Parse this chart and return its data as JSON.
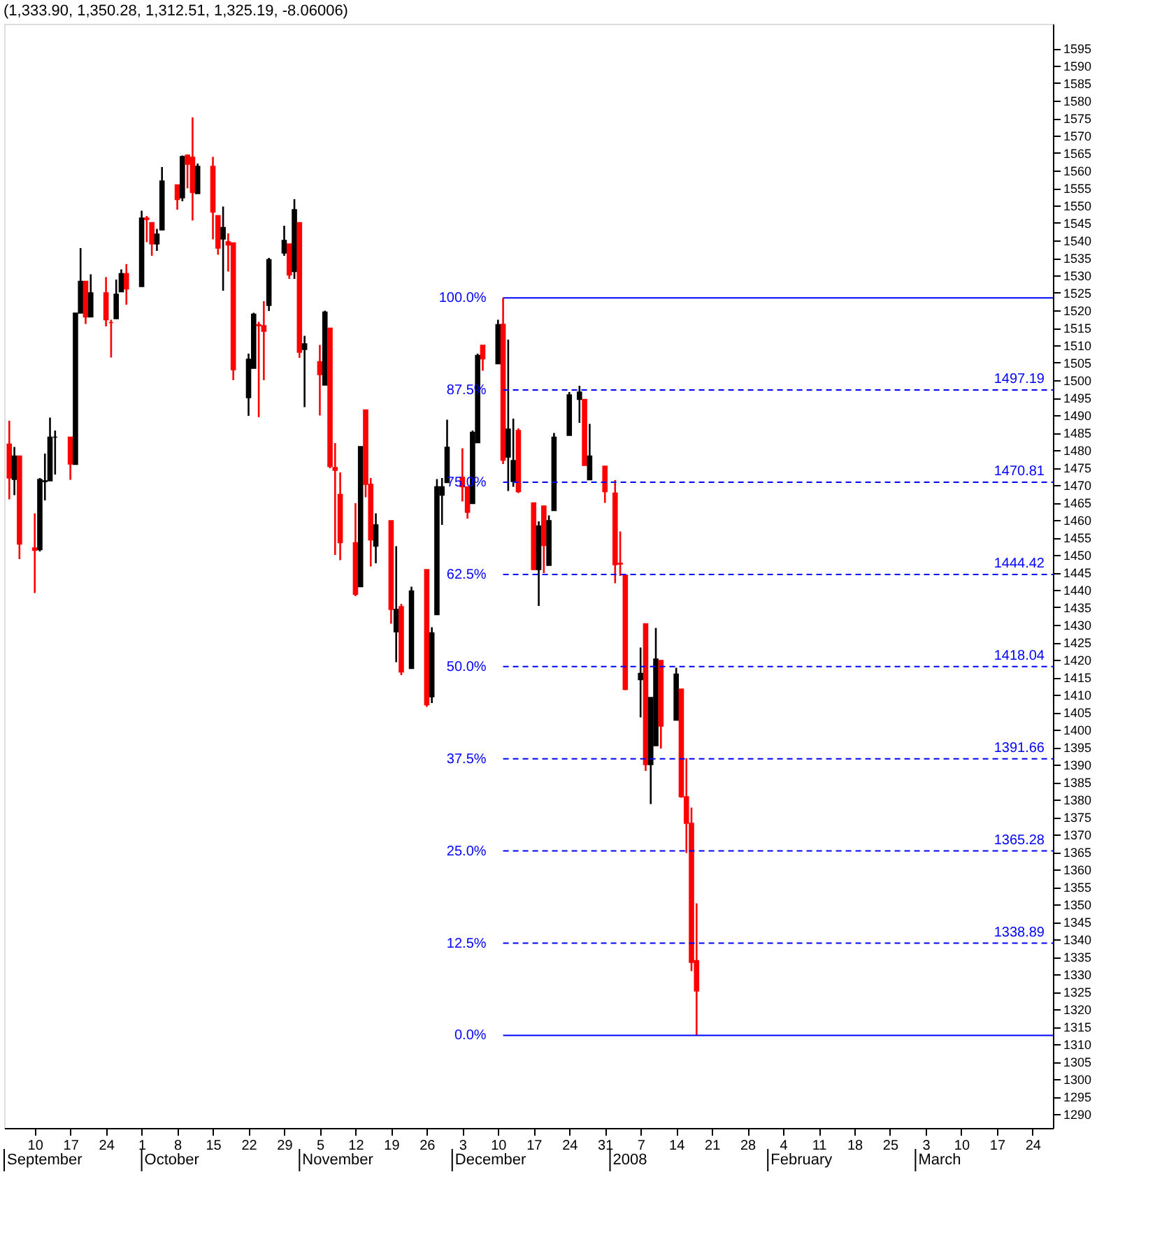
{
  "chart_data": {
    "type": "candlestick",
    "title": "(1,333.90, 1,350.28, 1,312.51, 1,325.19, -8.06006)",
    "x": [
      "2007-09-05",
      "2007-09-06",
      "2007-09-07",
      "2007-09-10",
      "2007-09-11",
      "2007-09-12",
      "2007-09-13",
      "2007-09-14",
      "2007-09-17",
      "2007-09-18",
      "2007-09-19",
      "2007-09-20",
      "2007-09-21",
      "2007-09-24",
      "2007-09-25",
      "2007-09-26",
      "2007-09-27",
      "2007-09-28",
      "2007-10-01",
      "2007-10-02",
      "2007-10-03",
      "2007-10-04",
      "2007-10-05",
      "2007-10-08",
      "2007-10-09",
      "2007-10-10",
      "2007-10-11",
      "2007-10-12",
      "2007-10-15",
      "2007-10-16",
      "2007-10-17",
      "2007-10-18",
      "2007-10-19",
      "2007-10-22",
      "2007-10-23",
      "2007-10-24",
      "2007-10-25",
      "2007-10-26",
      "2007-10-29",
      "2007-10-30",
      "2007-10-31",
      "2007-11-01",
      "2007-11-02",
      "2007-11-05",
      "2007-11-06",
      "2007-11-07",
      "2007-11-08",
      "2007-11-09",
      "2007-11-12",
      "2007-11-13",
      "2007-11-14",
      "2007-11-15",
      "2007-11-16",
      "2007-11-19",
      "2007-11-20",
      "2007-11-21",
      "2007-11-23",
      "2007-11-26",
      "2007-11-27",
      "2007-11-28",
      "2007-11-29",
      "2007-11-30",
      "2007-12-03",
      "2007-12-04",
      "2007-12-05",
      "2007-12-06",
      "2007-12-07",
      "2007-12-10",
      "2007-12-11",
      "2007-12-12",
      "2007-12-13",
      "2007-12-14",
      "2007-12-17",
      "2007-12-18",
      "2007-12-19",
      "2007-12-20",
      "2007-12-21",
      "2007-12-24",
      "2007-12-26",
      "2007-12-27",
      "2007-12-28",
      "2007-12-31",
      "2008-01-02",
      "2008-01-03",
      "2008-01-04",
      "2008-01-07",
      "2008-01-08",
      "2008-01-09",
      "2008-01-10",
      "2008-01-11",
      "2008-01-14",
      "2008-01-15",
      "2008-01-16",
      "2008-01-17",
      "2008-01-18"
    ],
    "ohlc": [
      [
        1481.7,
        1488.4,
        1465.9,
        1472.0
      ],
      [
        1471.6,
        1480.9,
        1467.1,
        1478.3
      ],
      [
        1478.3,
        1478.3,
        1448.8,
        1453.1
      ],
      [
        1452.0,
        1461.9,
        1439.1,
        1451.3
      ],
      [
        1451.5,
        1472.0,
        1451.0,
        1471.6
      ],
      [
        1471.0,
        1479.0,
        1465.6,
        1471.2
      ],
      [
        1471.2,
        1489.3,
        1471.2,
        1483.7
      ],
      [
        1483.7,
        1485.6,
        1473.0,
        1483.7
      ],
      [
        1483.7,
        1483.7,
        1471.5,
        1476.0
      ],
      [
        1475.9,
        1519.2,
        1475.9,
        1519.2
      ],
      [
        1519.2,
        1537.8,
        1519.2,
        1528.3
      ],
      [
        1528.3,
        1528.3,
        1516.1,
        1518.1
      ],
      [
        1518.1,
        1530.3,
        1518.1,
        1525.0
      ],
      [
        1525.0,
        1529.5,
        1515.4,
        1517.3
      ],
      [
        1516.5,
        1517.3,
        1506.5,
        1516.5
      ],
      [
        1517.6,
        1528.8,
        1517.6,
        1524.6
      ],
      [
        1525.3,
        1531.7,
        1525.3,
        1530.5
      ],
      [
        1530.5,
        1533.2,
        1521.6,
        1526.1
      ],
      [
        1526.8,
        1548.5,
        1526.8,
        1546.4
      ],
      [
        1546.4,
        1547.0,
        1539.5,
        1546.0
      ],
      [
        1545.1,
        1545.1,
        1535.6,
        1539.0
      ],
      [
        1539.0,
        1543.3,
        1537.0,
        1541.8
      ],
      [
        1543.0,
        1561.0,
        1543.0,
        1557.0
      ],
      [
        1555.9,
        1555.9,
        1548.8,
        1551.7
      ],
      [
        1552.2,
        1564.3,
        1551.2,
        1564.0
      ],
      [
        1564.4,
        1564.6,
        1554.9,
        1561.8
      ],
      [
        1563.8,
        1575.2,
        1545.7,
        1553.7
      ],
      [
        1553.4,
        1562.0,
        1553.4,
        1561.2
      ],
      [
        1561.2,
        1563.9,
        1540.3,
        1548.1
      ],
      [
        1547.1,
        1547.1,
        1535.9,
        1537.8
      ],
      [
        1540.4,
        1549.7,
        1525.6,
        1543.7
      ],
      [
        1538.7,
        1542.0,
        1531.1,
        1539.6
      ],
      [
        1539.3,
        1539.3,
        1500.0,
        1503.0
      ],
      [
        1495.0,
        1507.6,
        1489.8,
        1506.0
      ],
      [
        1503.4,
        1519.3,
        1503.4,
        1518.9
      ],
      [
        1515.9,
        1516.7,
        1489.4,
        1515.6
      ],
      [
        1515.6,
        1522.6,
        1500.0,
        1514.0
      ],
      [
        1521.4,
        1535.0,
        1519.8,
        1534.5
      ],
      [
        1536.4,
        1544.2,
        1535.6,
        1540.0
      ],
      [
        1539.0,
        1539.0,
        1529.0,
        1530.1
      ],
      [
        1531.1,
        1551.8,
        1529.0,
        1548.8
      ],
      [
        1545.1,
        1545.1,
        1506.4,
        1508.0
      ],
      [
        1508.8,
        1512.7,
        1492.3,
        1510.4
      ],
      [
        1505.3,
        1510.1,
        1489.9,
        1501.6
      ],
      [
        1498.6,
        1519.9,
        1498.6,
        1519.5
      ],
      [
        1514.9,
        1514.9,
        1474.8,
        1475.3
      ],
      [
        1475.0,
        1482.0,
        1450.0,
        1474.2
      ],
      [
        1467.3,
        1473.6,
        1448.5,
        1453.5
      ],
      [
        1453.5,
        1464.8,
        1438.2,
        1438.7
      ],
      [
        1440.9,
        1481.0,
        1440.9,
        1481.0
      ],
      [
        1491.5,
        1491.5,
        1466.5,
        1470.2
      ],
      [
        1470.2,
        1472.0,
        1446.7,
        1454.3
      ],
      [
        1452.5,
        1461.9,
        1447.6,
        1458.6
      ],
      [
        1459.8,
        1459.8,
        1430.3,
        1434.4
      ],
      [
        1428.0,
        1452.5,
        1419.3,
        1434.4
      ],
      [
        1435.2,
        1436.0,
        1415.6,
        1416.5
      ],
      [
        1417.5,
        1440.9,
        1417.5,
        1439.7
      ],
      [
        1445.8,
        1445.8,
        1406.5,
        1407.1
      ],
      [
        1409.4,
        1429.3,
        1407.6,
        1427.7
      ],
      [
        1432.9,
        1471.7,
        1432.9,
        1469.5
      ],
      [
        1467.1,
        1472.0,
        1458.6,
        1469.5
      ],
      [
        1470.7,
        1488.7,
        1470.7,
        1480.8
      ],
      [
        1472.2,
        1480.5,
        1465.3,
        1469.5
      ],
      [
        1469.5,
        1469.5,
        1460.4,
        1462.2
      ],
      [
        1464.7,
        1485.6,
        1464.7,
        1485.1
      ],
      [
        1482.1,
        1507.6,
        1482.1,
        1507.1
      ],
      [
        1510.0,
        1510.0,
        1502.7,
        1506.1
      ],
      [
        1504.7,
        1517.3,
        1504.7,
        1515.9
      ],
      [
        1516.0,
        1523.57,
        1476.0,
        1477.1
      ],
      [
        1478.0,
        1511.6,
        1468.3,
        1486.0
      ],
      [
        1471.0,
        1489.0,
        1469.5,
        1477.0
      ],
      [
        1485.6,
        1486.2,
        1467.7,
        1468.1
      ],
      [
        1464.9,
        1464.9,
        1445.8,
        1445.8
      ],
      [
        1445.8,
        1459.6,
        1435.4,
        1458.3
      ],
      [
        1464.0,
        1464.0,
        1444.8,
        1452.7
      ],
      [
        1447.0,
        1461.3,
        1447.0,
        1459.8
      ],
      [
        1462.7,
        1484.9,
        1462.7,
        1483.7
      ],
      [
        1484.2,
        1496.6,
        1484.2,
        1495.8
      ],
      [
        1494.5,
        1498.4,
        1487.8,
        1496.6
      ],
      [
        1494.5,
        1494.5,
        1475.6,
        1475.6
      ],
      [
        1471.5,
        1487.5,
        1471.5,
        1478.3
      ],
      [
        1475.4,
        1475.4,
        1464.9,
        1468.1
      ],
      [
        1467.7,
        1471.4,
        1441.9,
        1447.2
      ],
      [
        1447.6,
        1456.7,
        1444.0,
        1447.4
      ],
      [
        1444.2,
        1444.2,
        1411.3,
        1411.5
      ],
      [
        1414.3,
        1423.5,
        1403.5,
        1416.1
      ],
      [
        1430.3,
        1430.3,
        1388.2,
        1390.0
      ],
      [
        1390.0,
        1409.2,
        1378.7,
        1409.2
      ],
      [
        1395.4,
        1429.1,
        1395.4,
        1420.2
      ],
      [
        1419.8,
        1419.8,
        1394.6,
        1401.0
      ],
      [
        1402.7,
        1417.7,
        1402.7,
        1415.9
      ],
      [
        1411.6,
        1411.6,
        1380.5,
        1380.8
      ],
      [
        1380.8,
        1391.8,
        1364.7,
        1373.2
      ],
      [
        1373.2,
        1377.7,
        1330.9,
        1333.4
      ],
      [
        1333.9,
        1350.28,
        1312.51,
        1325.19
      ]
    ],
    "colors": [
      "#ff0000",
      "#000000",
      "#ff0000",
      "#ff0000",
      "#000000",
      "#000000",
      "#000000",
      "#000000",
      "#ff0000",
      "#000000",
      "#000000",
      "#ff0000",
      "#000000",
      "#ff0000",
      "#ff0000",
      "#000000",
      "#000000",
      "#ff0000",
      "#000000",
      "#ff0000",
      "#ff0000",
      "#000000",
      "#000000",
      "#ff0000",
      "#000000",
      "#ff0000",
      "#ff0000",
      "#000000",
      "#ff0000",
      "#ff0000",
      "#000000",
      "#ff0000",
      "#ff0000",
      "#000000",
      "#000000",
      "#ff0000",
      "#ff0000",
      "#000000",
      "#000000",
      "#ff0000",
      "#000000",
      "#ff0000",
      "#000000",
      "#ff0000",
      "#000000",
      "#ff0000",
      "#ff0000",
      "#ff0000",
      "#ff0000",
      "#000000",
      "#ff0000",
      "#ff0000",
      "#000000",
      "#ff0000",
      "#000000",
      "#ff0000",
      "#000000",
      "#ff0000",
      "#000000",
      "#000000",
      "#000000",
      "#000000",
      "#ff0000",
      "#ff0000",
      "#000000",
      "#000000",
      "#ff0000",
      "#000000",
      "#ff0000",
      "#000000",
      "#000000",
      "#ff0000",
      "#ff0000",
      "#000000",
      "#ff0000",
      "#000000",
      "#000000",
      "#000000",
      "#000000",
      "#ff0000",
      "#000000",
      "#ff0000",
      "#ff0000",
      "#ff0000",
      "#ff0000",
      "#000000",
      "#ff0000",
      "#000000",
      "#000000",
      "#ff0000",
      "#000000",
      "#ff0000",
      "#ff0000",
      "#ff0000",
      "#ff0000"
    ],
    "xlim": [
      "2007-09-04",
      "2008-03-28"
    ],
    "xticks": [
      {
        "value": "2007-09-10",
        "label": "10"
      },
      {
        "value": "2007-09-17",
        "label": "17"
      },
      {
        "value": "2007-09-24",
        "label": "24"
      },
      {
        "value": "2007-10-01",
        "label": "1"
      },
      {
        "value": "2007-10-08",
        "label": "8"
      },
      {
        "value": "2007-10-15",
        "label": "15"
      },
      {
        "value": "2007-10-22",
        "label": "22"
      },
      {
        "value": "2007-10-29",
        "label": "29"
      },
      {
        "value": "2007-11-05",
        "label": "5"
      },
      {
        "value": "2007-11-12",
        "label": "12"
      },
      {
        "value": "2007-11-19",
        "label": "19"
      },
      {
        "value": "2007-11-26",
        "label": "26"
      },
      {
        "value": "2007-12-03",
        "label": "3"
      },
      {
        "value": "2007-12-10",
        "label": "10"
      },
      {
        "value": "2007-12-17",
        "label": "17"
      },
      {
        "value": "2007-12-24",
        "label": "24"
      },
      {
        "value": "2007-12-31",
        "label": "31"
      },
      {
        "value": "2008-01-07",
        "label": "7"
      },
      {
        "value": "2008-01-14",
        "label": "14"
      },
      {
        "value": "2008-01-21",
        "label": "21"
      },
      {
        "value": "2008-01-28",
        "label": "28"
      },
      {
        "value": "2008-02-04",
        "label": "4"
      },
      {
        "value": "2008-02-11",
        "label": "11"
      },
      {
        "value": "2008-02-18",
        "label": "18"
      },
      {
        "value": "2008-02-25",
        "label": "25"
      },
      {
        "value": "2008-03-03",
        "label": "3"
      },
      {
        "value": "2008-03-10",
        "label": "10"
      },
      {
        "value": "2008-03-17",
        "label": "17"
      },
      {
        "value": "2008-03-24",
        "label": "24"
      }
    ],
    "ylim": [
      1286,
      1602
    ],
    "yticks": [
      1290,
      1295,
      1300,
      1305,
      1310,
      1315,
      1320,
      1325,
      1330,
      1335,
      1340,
      1345,
      1350,
      1355,
      1360,
      1365,
      1370,
      1375,
      1380,
      1385,
      1390,
      1395,
      1400,
      1405,
      1410,
      1415,
      1420,
      1425,
      1430,
      1435,
      1440,
      1445,
      1450,
      1455,
      1460,
      1465,
      1470,
      1475,
      1480,
      1485,
      1490,
      1495,
      1500,
      1505,
      1510,
      1515,
      1520,
      1525,
      1530,
      1535,
      1540,
      1545,
      1550,
      1555,
      1560,
      1565,
      1570,
      1575,
      1580,
      1585,
      1590,
      1595
    ],
    "ref_lines": [
      {
        "axis": "y",
        "value": 1523.57,
        "color": "#0000ff",
        "line_style": "solid"
      },
      {
        "axis": "y",
        "value": 1497.19,
        "label": "1497.19",
        "color": "#0000ff",
        "line_style": "dashed"
      },
      {
        "axis": "y",
        "value": 1470.81,
        "label": "1470.81",
        "color": "#0000ff",
        "line_style": "dashed"
      },
      {
        "axis": "y",
        "value": 1444.42,
        "label": "1444.42",
        "color": "#0000ff",
        "line_style": "dashed"
      },
      {
        "axis": "y",
        "value": 1418.04,
        "label": "1418.04",
        "color": "#0000ff",
        "line_style": "dashed"
      },
      {
        "axis": "y",
        "value": 1391.66,
        "label": "1391.66",
        "color": "#0000ff",
        "line_style": "dashed"
      },
      {
        "axis": "y",
        "value": 1365.28,
        "label": "1365.28",
        "color": "#0000ff",
        "line_style": "dashed"
      },
      {
        "axis": "y",
        "value": 1338.89,
        "label": "1338.89",
        "color": "#0000ff",
        "line_style": "dashed"
      },
      {
        "axis": "y",
        "value": 1312.51,
        "color": "#0000ff",
        "line_style": "solid"
      }
    ],
    "annotations": [
      {
        "text": "100.0%",
        "x": "2007-12-11",
        "y": 1523.57
      },
      {
        "text": "87.5%",
        "x": "2007-12-11",
        "y": 1497.19
      },
      {
        "text": "75.0%",
        "x": "2007-12-11",
        "y": 1470.81
      },
      {
        "text": "62.5%",
        "x": "2007-12-11",
        "y": 1444.42
      },
      {
        "text": "50.0%",
        "x": "2007-12-11",
        "y": 1418.04
      },
      {
        "text": "37.5%",
        "x": "2007-12-11",
        "y": 1391.66
      },
      {
        "text": "25.0%",
        "x": "2007-12-11",
        "y": 1365.28
      },
      {
        "text": "12.5%",
        "x": "2007-12-11",
        "y": 1338.89
      },
      {
        "text": "0.0%",
        "x": "2007-12-11",
        "y": 1312.51
      },
      "September",
      "October",
      "November",
      "December",
      "2008",
      "February",
      "March"
    ],
    "grid": false
  }
}
